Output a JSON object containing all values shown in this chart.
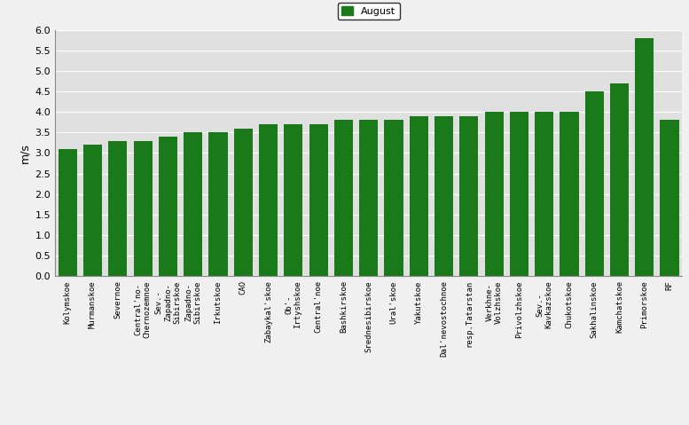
{
  "categories": [
    "Kolymskoe",
    "Murmanskoe",
    "Severnoe",
    "Central'no-\nChernozemnoe",
    "Sev.-\nZapadno-\nSibirskoe",
    "Zapadno-\nSibirskoe",
    "Irkutskoe",
    "CAO",
    "Zabaykal'skoe",
    "Ob'-\nIrtyshskoe",
    "Central'noe",
    "Bashkirskoe",
    "Srednesibirskoe",
    "Ural'skoe",
    "Yakutskoe",
    "Dal'nevostochnoe",
    "resp.Tatarstan",
    "Verkhne-\nVolzhskoe",
    "Privolzhskoe",
    "Sev.-\nKavkazskoe",
    "Chukotskoe",
    "Sakhalinskoe",
    "Kamchatskoe",
    "Primorskoe",
    "RF"
  ],
  "values": [
    3.1,
    3.2,
    3.3,
    3.3,
    3.4,
    3.5,
    3.5,
    3.6,
    3.7,
    3.7,
    3.7,
    3.8,
    3.8,
    3.8,
    3.9,
    3.9,
    3.9,
    4.0,
    4.0,
    4.0,
    4.0,
    4.5,
    4.7,
    5.8,
    3.8
  ],
  "bar_color": "#1a7a1a",
  "ylabel": "m/s",
  "ylim": [
    0,
    6
  ],
  "yticks": [
    0,
    0.5,
    1.0,
    1.5,
    2.0,
    2.5,
    3.0,
    3.5,
    4.0,
    4.5,
    5.0,
    5.5,
    6.0
  ],
  "legend_label": "August",
  "legend_color": "#1a7a1a",
  "fig_bg_color": "#f0f0f0",
  "plot_bg_color": "#e0e0e0"
}
